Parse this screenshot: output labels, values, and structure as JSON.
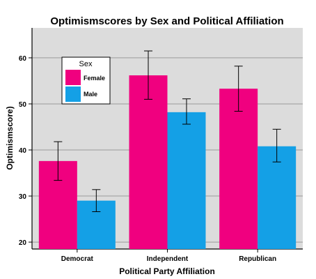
{
  "chart_data": {
    "type": "bar",
    "title": "Optimismscores by Sex and Political Affiliation",
    "xlabel": "Political Party Affiliation",
    "ylabel": "Optimismscore)",
    "categories": [
      "Democrat",
      "Independent",
      "Republican"
    ],
    "series": [
      {
        "name": "Female",
        "color": "#f0007f",
        "values": [
          37.6,
          56.2,
          53.3
        ],
        "err_low": [
          33.4,
          51.0,
          48.4
        ],
        "err_high": [
          41.8,
          61.5,
          58.2
        ]
      },
      {
        "name": "Male",
        "color": "#14a0e6",
        "values": [
          29.0,
          48.2,
          40.8
        ],
        "err_low": [
          26.6,
          45.6,
          37.4
        ],
        "err_high": [
          31.4,
          51.1,
          44.5
        ]
      }
    ],
    "ylim": [
      18.5,
      66.5
    ],
    "yticks": [
      20,
      30,
      40,
      50,
      60
    ],
    "grid": true,
    "legend": {
      "title": "Sex",
      "placement": "top-left"
    },
    "plot_background": "#dcdcdc"
  }
}
